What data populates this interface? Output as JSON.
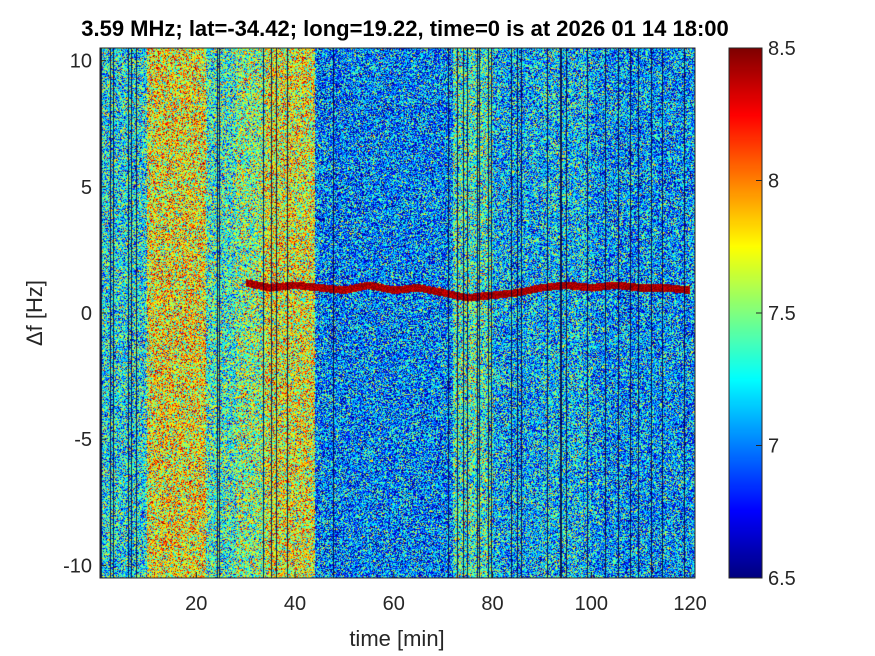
{
  "chart_data": {
    "type": "heatmap",
    "title": "3.59 MHz;  lat=-34.42; long=19.22, time=0 is at 2026 01 14 18:00",
    "xlabel": "time [min]",
    "ylabel": "Δf [Hz]",
    "xlim": [
      0.5,
      121
    ],
    "ylim": [
      -10.5,
      10.5
    ],
    "xticks": [
      20,
      40,
      60,
      80,
      100,
      120
    ],
    "yticks": [
      -10,
      -5,
      0,
      5,
      10
    ],
    "ytick_labels": [
      "-10",
      "-5",
      "0",
      "5",
      "10"
    ],
    "grid": false,
    "colorbar": {
      "clim": [
        6.5,
        8.5
      ],
      "ticks": [
        6.5,
        7,
        7.5,
        8,
        8.5
      ],
      "tick_labels": [
        "6.5",
        "7",
        "7.5",
        "8",
        "8.5"
      ],
      "colormap": "jet"
    },
    "mean_level_bands": [
      {
        "t_start": 0.5,
        "t_end": 10,
        "level": 7.25
      },
      {
        "t_start": 10,
        "t_end": 22,
        "level": 7.75
      },
      {
        "t_start": 22,
        "t_end": 28,
        "level": 7.35
      },
      {
        "t_start": 28,
        "t_end": 34,
        "level": 7.5
      },
      {
        "t_start": 34,
        "t_end": 44,
        "level": 7.7
      },
      {
        "t_start": 44,
        "t_end": 72,
        "level": 7.0
      },
      {
        "t_start": 72,
        "t_end": 80,
        "level": 7.35
      },
      {
        "t_start": 80,
        "t_end": 90,
        "level": 7.1
      },
      {
        "t_start": 90,
        "t_end": 100,
        "level": 7.15
      },
      {
        "t_start": 100,
        "t_end": 121,
        "level": 7.05
      }
    ],
    "carrier_trace": {
      "t": [
        30,
        35,
        40,
        45,
        50,
        55,
        60,
        65,
        70,
        75,
        80,
        85,
        90,
        95,
        100,
        105,
        110,
        115,
        120
      ],
      "df": [
        1.2,
        1.0,
        1.1,
        1.0,
        0.9,
        1.1,
        0.9,
        1.0,
        0.8,
        0.6,
        0.7,
        0.8,
        1.0,
        1.1,
        1.0,
        1.1,
        1.0,
        1.0,
        0.9
      ],
      "level": 8.3
    }
  }
}
